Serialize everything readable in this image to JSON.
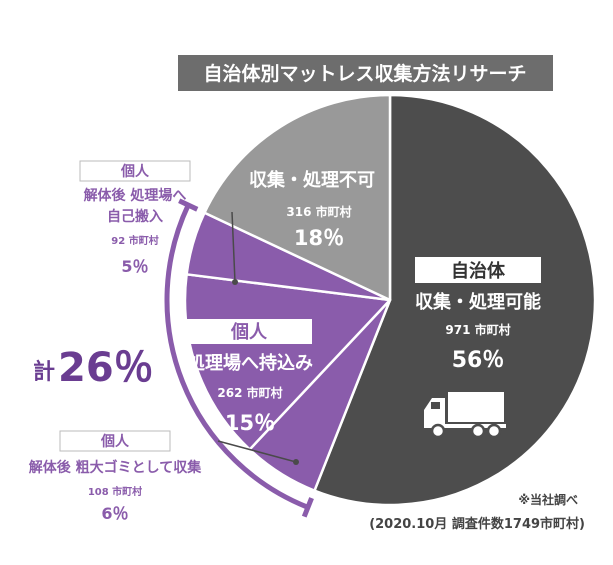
{
  "chart_data": {
    "type": "pie",
    "title": "自治体別マットレス収集方法リサーチ",
    "total": 1749,
    "slices": [
      {
        "key": "municipal",
        "tag": "自治体",
        "label": "収集・処理可能",
        "count_text": "971 市町村",
        "value": 56,
        "percent_text": "56％",
        "color": "#4d4d4d"
      },
      {
        "key": "bulky",
        "tag": "個人",
        "label": "解体後 粗大ゴミとして収集",
        "count_text": "108 市町村",
        "value": 6,
        "percent_text": "6％",
        "color": "#8a5cab"
      },
      {
        "key": "bringin",
        "tag": "個人",
        "label": "処理場へ持込み",
        "count_text": "262 市町村",
        "value": 15,
        "percent_text": "15％",
        "color": "#8a5cab"
      },
      {
        "key": "selfbring",
        "tag": "個人",
        "label_line1": "解体後 処理場へ",
        "label_line2": "自己搬入",
        "count_text": "92 市町村",
        "value": 5,
        "percent_text": "5％",
        "color": "#8a5cab"
      },
      {
        "key": "impossible",
        "label": "収集・処理不可",
        "count_text": "316 市町村",
        "value": 18,
        "percent_text": "18％",
        "color": "#999999"
      }
    ],
    "individual_total": {
      "prefix": "計",
      "value": 26,
      "percent_text": "26％"
    },
    "source": {
      "note": "※当社調べ",
      "detail": "(2020.10月 調査件数1749市町村)"
    }
  },
  "colors": {
    "title_bg": "#6d6d6d",
    "purple": "#8a5cab",
    "text_gray": "#444444"
  },
  "icons": {
    "truck": "truck-icon"
  }
}
